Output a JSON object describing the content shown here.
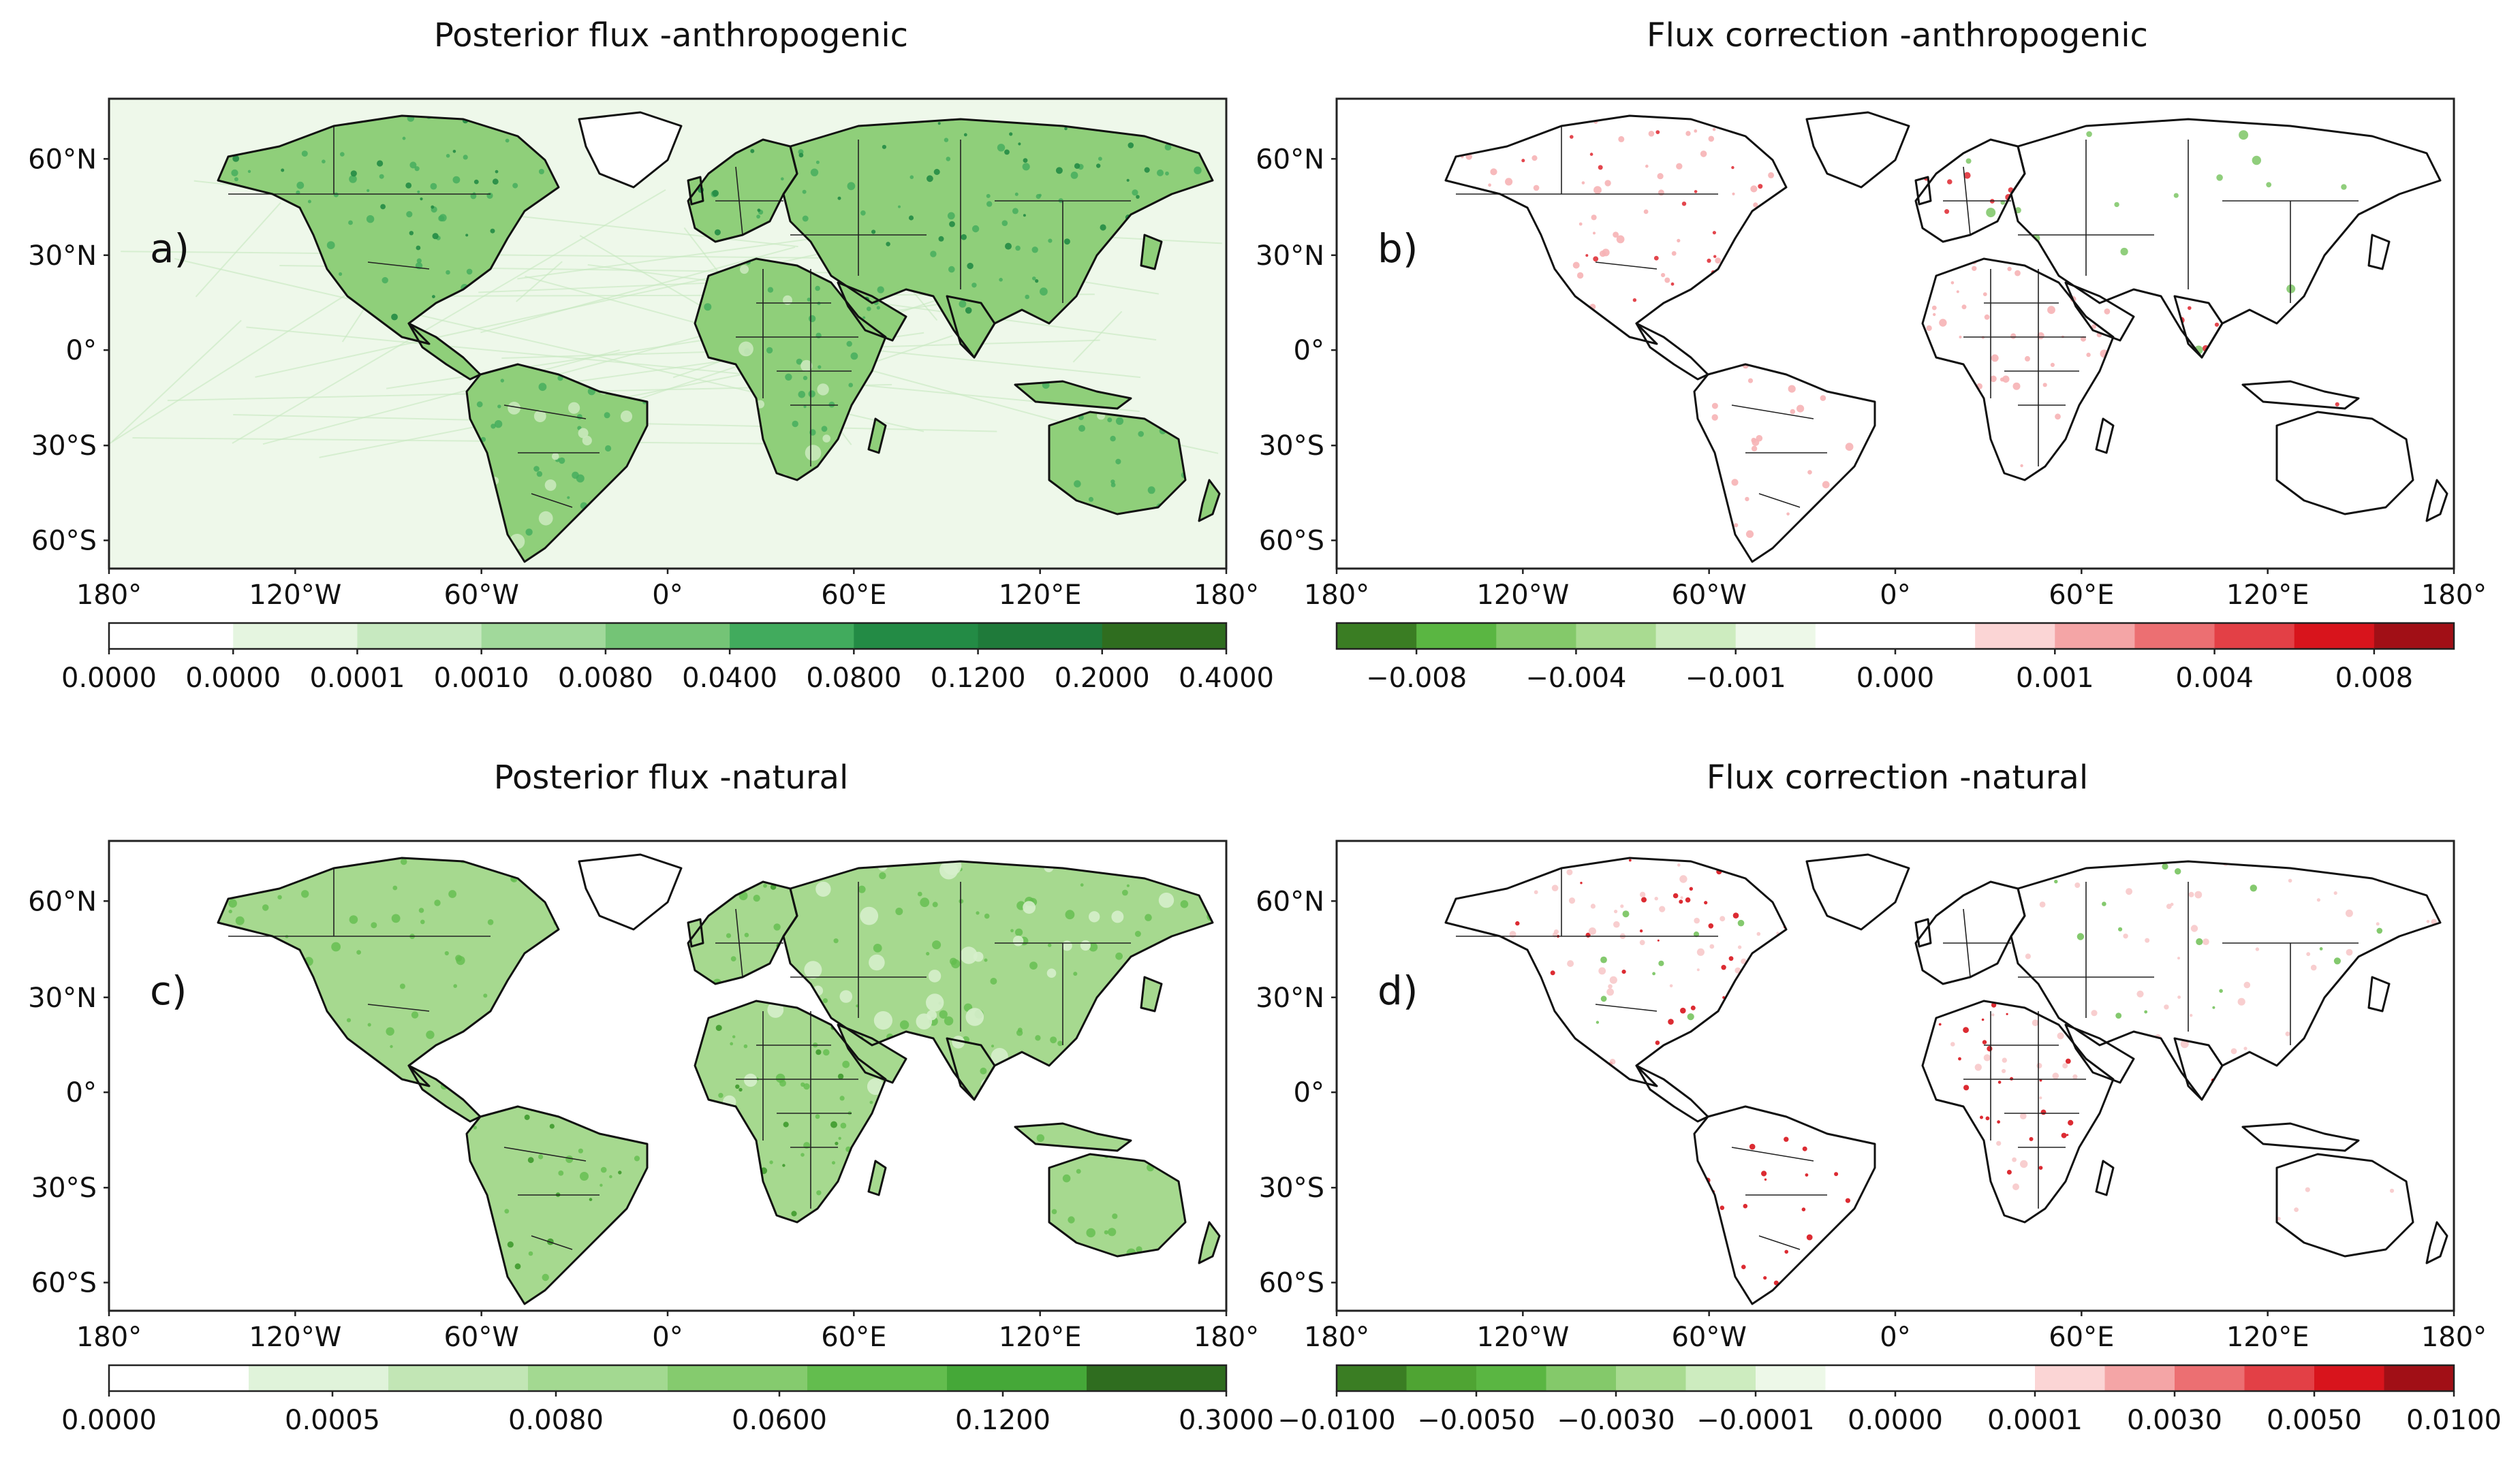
{
  "panels": [
    {
      "id": "a",
      "title": "Posterior flux -anthropogenic",
      "label": "a)",
      "lat_ticks": [
        "60°N",
        "30°N",
        "0°",
        "30°S",
        "60°S"
      ],
      "lon_ticks": [
        "180°",
        "120°W",
        "60°W",
        "0°",
        "60°E",
        "120°E",
        "180°"
      ],
      "colorbar": {
        "colors": [
          "#ffffff",
          "#e5f5e0",
          "#c7e9c0",
          "#a1d99b",
          "#74c476",
          "#41ab5d",
          "#238b45",
          "#1f7a3a",
          "#2f6d1f"
        ],
        "labels": [
          "0.0000",
          "0.0000",
          "0.0001",
          "0.0010",
          "0.0080",
          "0.0400",
          "0.0800",
          "0.1200",
          "0.2000",
          "0.4000"
        ],
        "label_mode": "edges"
      }
    },
    {
      "id": "b",
      "title": "Flux correction -anthropogenic",
      "label": "b)",
      "lat_ticks": [
        "60°N",
        "30°N",
        "0°",
        "30°S",
        "60°S"
      ],
      "lon_ticks": [
        "180°",
        "120°W",
        "60°W",
        "0°",
        "60°E",
        "120°E",
        "180°"
      ],
      "colorbar": {
        "colors": [
          "#3a7d23",
          "#5ab642",
          "#84c96a",
          "#a9db91",
          "#cdecbf",
          "#edf8e8",
          "#ffffff",
          "#ffffff",
          "#fbd5d5",
          "#f4a5a6",
          "#ec6f72",
          "#e34046",
          "#d8141c",
          "#a10f16"
        ],
        "labels": [
          "−0.008",
          "−0.004",
          "−0.001",
          "0.000",
          "0.001",
          "0.004",
          "0.008"
        ],
        "label_mode": "centers-pairs"
      }
    },
    {
      "id": "c",
      "title": "Posterior flux -natural",
      "label": "c)",
      "lat_ticks": [
        "60°N",
        "30°N",
        "0°",
        "30°S",
        "60°S"
      ],
      "lon_ticks": [
        "180°",
        "120°W",
        "60°W",
        "0°",
        "60°E",
        "120°E",
        "180°"
      ],
      "colorbar": {
        "colors": [
          "#ffffff",
          "#e0f3da",
          "#c2e6b5",
          "#a3d991",
          "#85cb6e",
          "#63bd4e",
          "#45a838",
          "#2f6d1f"
        ],
        "labels": [
          "0.0000",
          "0.0005",
          "0.0080",
          "0.0600",
          "0.1200",
          "0.3000"
        ],
        "label_mode": "spread"
      }
    },
    {
      "id": "d",
      "title": "Flux correction -natural",
      "label": "d)",
      "lat_ticks": [
        "60°N",
        "30°N",
        "0°",
        "30°S",
        "60°S"
      ],
      "lon_ticks": [
        "180°",
        "120°W",
        "60°W",
        "0°",
        "60°E",
        "120°E",
        "180°"
      ],
      "colorbar": {
        "colors": [
          "#3a7d23",
          "#4fa433",
          "#5ab642",
          "#84c96a",
          "#a9db91",
          "#cdecbf",
          "#edf8e8",
          "#ffffff",
          "#ffffff",
          "#ffffff",
          "#fbd5d5",
          "#f4a5a6",
          "#ec6f72",
          "#e34046",
          "#d8141c",
          "#a10f16"
        ],
        "labels": [
          "−0.0100",
          "−0.0050",
          "−0.0030",
          "−0.0001",
          "0.0000",
          "0.0001",
          "0.0030",
          "0.0050",
          "0.0100"
        ],
        "label_mode": "edges"
      }
    }
  ],
  "map_colors": {
    "a": {
      "land": "#8fcf7a",
      "land_light": "#c9e8bb",
      "ocean_tint": "#eef8ea"
    },
    "b": {
      "land": "#ffffff",
      "red": "#e0323a",
      "pink": "#f6b3b5",
      "green": "#7cc565"
    },
    "c": {
      "land": "#a6d98f",
      "land_light": "#d6eecb",
      "ocean_tint": "#ffffff"
    },
    "d": {
      "land": "#ffffff",
      "red": "#d8141c",
      "pink": "#f7c6c7",
      "green": "#6fbf55"
    }
  }
}
